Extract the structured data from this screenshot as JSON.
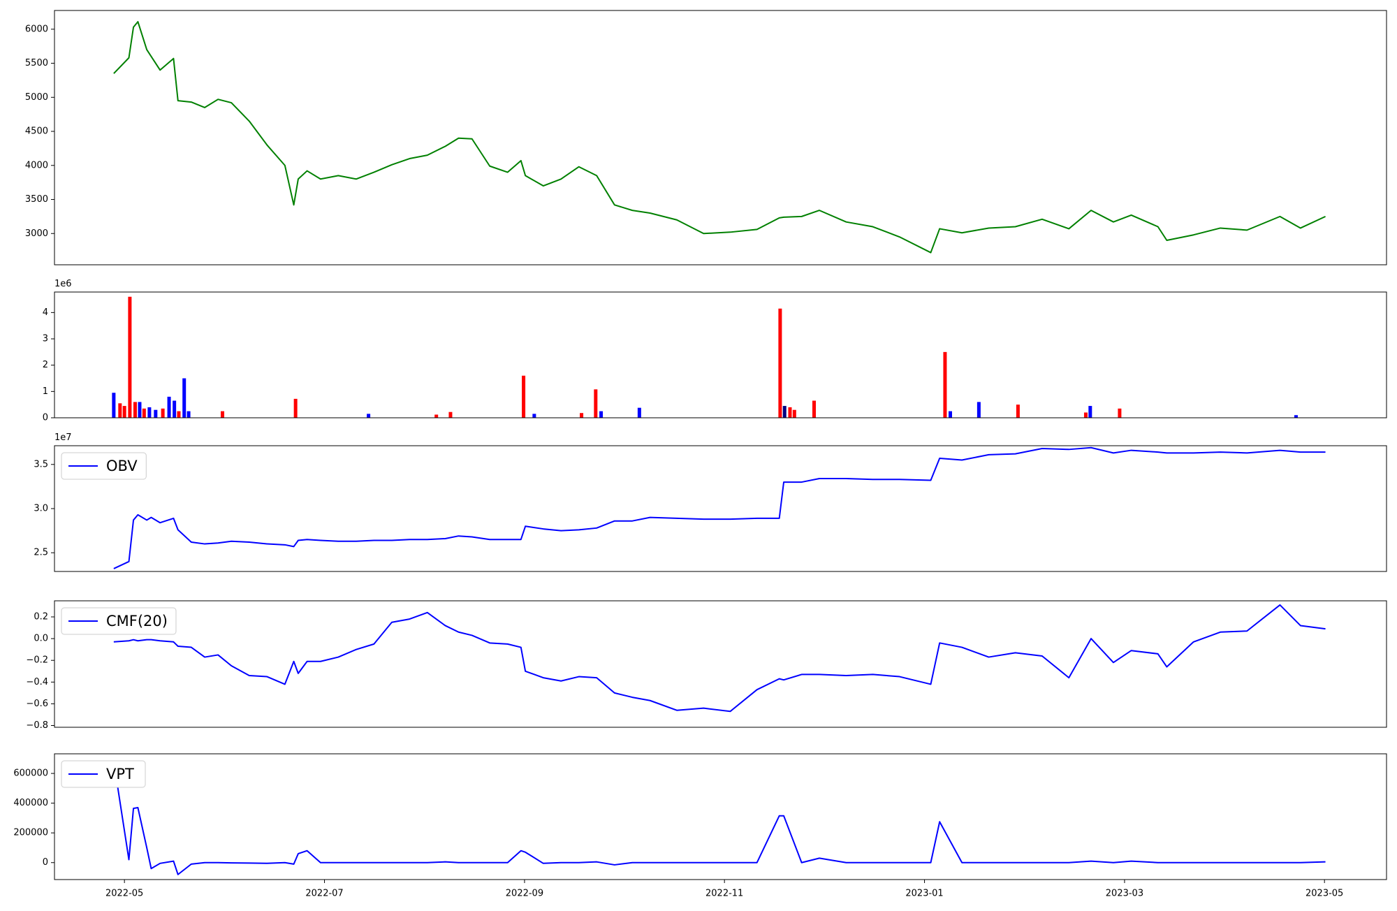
{
  "chart_data": [
    {
      "type": "line",
      "x": [
        2022.3244,
        2022.337,
        2022.3408,
        2022.3445,
        2022.3519,
        2022.3556,
        2022.363,
        2022.3742,
        2022.3779,
        2022.389,
        2022.4002,
        2022.4113,
        2022.4224,
        2022.4373,
        2022.4521,
        2022.467,
        2022.4744,
        2022.4781,
        2022.4855,
        2022.4967,
        2022.5115,
        2022.5264,
        2022.5412,
        2022.5561,
        2022.5709,
        2022.5857,
        2022.6006,
        2022.6117,
        2022.6229,
        2022.6377,
        2022.6526,
        2022.6637,
        2022.6674,
        2022.6823,
        2022.6971,
        2022.712,
        2022.7268,
        2022.7417,
        2022.7565,
        2022.7713,
        2022.7936,
        2022.8159,
        2022.8381,
        2022.8604,
        2022.879,
        2022.8827,
        2022.8976,
        2022.9124,
        2022.9347,
        2022.9569,
        2022.9792,
        2023.0052,
        2023.0126,
        2023.0312,
        2023.0535,
        2023.0757,
        2023.098,
        2023.1203,
        2023.1388,
        2023.1574,
        2023.1723,
        2023.1945,
        2023.2019,
        2023.2242,
        2023.2465,
        2023.2687,
        2023.2962,
        2023.3133,
        2023.3341
      ],
      "series": [
        {
          "color": "#008000",
          "values": [
            5350,
            5580,
            6030,
            6110,
            5700,
            5600,
            5400,
            5570,
            4950,
            4930,
            4850,
            4970,
            4920,
            4650,
            4300,
            4000,
            3420,
            3800,
            3920,
            3800,
            3850,
            3800,
            3900,
            4010,
            4100,
            4150,
            4280,
            4400,
            4390,
            3990,
            3900,
            4070,
            3850,
            3700,
            3800,
            3980,
            3850,
            3420,
            3340,
            3300,
            3200,
            3000,
            3020,
            3060,
            3230,
            3240,
            3250,
            3340,
            3170,
            3100,
            2950,
            2720,
            3070,
            3010,
            3080,
            3100,
            3210,
            3070,
            3340,
            3170,
            3270,
            3100,
            2900,
            2980,
            3080,
            3050,
            3250,
            3080,
            3250
          ]
        }
      ],
      "xlim": [
        2022.275,
        2023.385
      ],
      "ylim": [
        2541,
        6275
      ],
      "yticks": [
        3000,
        3500,
        4000,
        4500,
        5000,
        5500,
        6000
      ]
    },
    {
      "type": "bar",
      "x": [
        2022.3244,
        2022.3296,
        2022.3333,
        2022.3378,
        2022.3422,
        2022.346,
        2022.3497,
        2022.3541,
        2022.3593,
        2022.3653,
        2022.3705,
        2022.3749,
        2022.3786,
        2022.3831,
        2022.3868,
        2022.415,
        2022.4759,
        2022.5367,
        2022.5932,
        2022.605,
        2022.6659,
        2022.6748,
        2022.7142,
        2022.726,
        2022.7305,
        2022.7624,
        2022.8797,
        2022.8834,
        2022.8879,
        2022.8916,
        2022.908,
        2023.0171,
        2023.0215,
        2023.0453,
        2023.0779,
        2023.1344,
        2023.1381,
        2023.1626,
        2023.3096
      ],
      "values": [
        950000,
        550000,
        450000,
        4600000,
        600000,
        600000,
        350000,
        400000,
        300000,
        350000,
        800000,
        650000,
        250000,
        1500000,
        250000,
        250000,
        720000,
        150000,
        120000,
        220000,
        1600000,
        150000,
        180000,
        1080000,
        250000,
        380000,
        4150000,
        450000,
        400000,
        300000,
        650000,
        2500000,
        250000,
        600000,
        500000,
        200000,
        450000,
        350000,
        100000
      ],
      "colors": [
        "#0000ff",
        "#ff0000",
        "#ff0000",
        "#ff0000",
        "#ff0000",
        "#0000ff",
        "#ff0000",
        "#0000ff",
        "#0000ff",
        "#ff0000",
        "#0000ff",
        "#0000ff",
        "#ff0000",
        "#0000ff",
        "#0000ff",
        "#ff0000",
        "#ff0000",
        "#0000ff",
        "#ff0000",
        "#ff0000",
        "#ff0000",
        "#0000ff",
        "#ff0000",
        "#ff0000",
        "#0000ff",
        "#0000ff",
        "#ff0000",
        "#000080",
        "#ff0000",
        "#ff0000",
        "#ff0000",
        "#ff0000",
        "#0000ff",
        "#0000ff",
        "#ff0000",
        "#ff0000",
        "#0000ff",
        "#ff0000",
        "#0000ff"
      ],
      "xlim": [
        2022.275,
        2023.385
      ],
      "ylim": [
        0,
        4780000
      ],
      "yticks": [
        {
          "value": 0,
          "label": "0"
        },
        {
          "value": 1000000,
          "label": "1"
        },
        {
          "value": 2000000,
          "label": "2"
        },
        {
          "value": 3000000,
          "label": "3"
        },
        {
          "value": 4000000,
          "label": "4"
        }
      ],
      "y_offset_label": "1e6"
    },
    {
      "type": "line",
      "x": [
        2022.3244,
        2022.337,
        2022.3408,
        2022.3445,
        2022.3519,
        2022.3556,
        2022.363,
        2022.3742,
        2022.3779,
        2022.389,
        2022.4002,
        2022.4113,
        2022.4224,
        2022.4373,
        2022.4521,
        2022.467,
        2022.4744,
        2022.4781,
        2022.4855,
        2022.4967,
        2022.5115,
        2022.5264,
        2022.5412,
        2022.5561,
        2022.5709,
        2022.5857,
        2022.6006,
        2022.6117,
        2022.6229,
        2022.6377,
        2022.6526,
        2022.6637,
        2022.6674,
        2022.6823,
        2022.6971,
        2022.712,
        2022.7268,
        2022.7417,
        2022.7565,
        2022.7713,
        2022.7936,
        2022.8159,
        2022.8381,
        2022.8604,
        2022.879,
        2022.8827,
        2022.8976,
        2022.9124,
        2022.9347,
        2022.9569,
        2022.9792,
        2023.0052,
        2023.0126,
        2023.0312,
        2023.0535,
        2023.0757,
        2023.098,
        2023.1203,
        2023.1388,
        2023.1574,
        2023.1723,
        2023.1945,
        2023.2019,
        2023.2242,
        2023.2465,
        2023.2687,
        2023.2962,
        2023.3133,
        2023.3341
      ],
      "series": [
        {
          "name": "OBV",
          "color": "#0000ff",
          "values": [
            23200000,
            24000000,
            28700000,
            29300000,
            28700000,
            29000000,
            28400000,
            28900000,
            27600000,
            26200000,
            26000000,
            26100000,
            26300000,
            26200000,
            26000000,
            25900000,
            25700000,
            26400000,
            26500000,
            26400000,
            26300000,
            26300000,
            26400000,
            26400000,
            26500000,
            26500000,
            26600000,
            26900000,
            26800000,
            26500000,
            26500000,
            26500000,
            28000000,
            27700000,
            27500000,
            27600000,
            27800000,
            28600000,
            28600000,
            29000000,
            28900000,
            28800000,
            28800000,
            28900000,
            28900000,
            33000000,
            33000000,
            33400000,
            33400000,
            33300000,
            33300000,
            33200000,
            35700000,
            35500000,
            36100000,
            36200000,
            36800000,
            36700000,
            36900000,
            36300000,
            36600000,
            36400000,
            36300000,
            36300000,
            36400000,
            36300000,
            36600000,
            36400000,
            36400000
          ]
        }
      ],
      "xlim": [
        2022.275,
        2023.385
      ],
      "ylim": [
        22880000,
        37120000
      ],
      "yticks": [
        {
          "value": 25000000,
          "label": "2.5"
        },
        {
          "value": 30000000,
          "label": "3.0"
        },
        {
          "value": 35000000,
          "label": "3.5"
        }
      ],
      "y_offset_label": "1e7",
      "legend": "upper left"
    },
    {
      "type": "line",
      "x": [
        2022.3244,
        2022.337,
        2022.3408,
        2022.3445,
        2022.3519,
        2022.3556,
        2022.363,
        2022.3742,
        2022.3779,
        2022.389,
        2022.4002,
        2022.4113,
        2022.4224,
        2022.4373,
        2022.4521,
        2022.467,
        2022.4744,
        2022.4781,
        2022.4855,
        2022.4967,
        2022.5115,
        2022.5264,
        2022.5412,
        2022.5561,
        2022.5709,
        2022.5857,
        2022.6006,
        2022.6117,
        2022.6229,
        2022.6377,
        2022.6526,
        2022.6637,
        2022.6674,
        2022.6823,
        2022.6971,
        2022.712,
        2022.7268,
        2022.7417,
        2022.7565,
        2022.7713,
        2022.7936,
        2022.8159,
        2022.8381,
        2022.8604,
        2022.879,
        2022.8827,
        2022.8976,
        2022.9124,
        2022.9347,
        2022.9569,
        2022.9792,
        2023.0052,
        2023.0126,
        2023.0312,
        2023.0535,
        2023.0757,
        2023.098,
        2023.1203,
        2023.1388,
        2023.1574,
        2023.1723,
        2023.1945,
        2023.2019,
        2023.2242,
        2023.2465,
        2023.2687,
        2023.2962,
        2023.3133,
        2023.3341
      ],
      "series": [
        {
          "name": "CMF(20)",
          "color": "#0000ff",
          "values": [
            -0.03,
            -0.02,
            -0.01,
            -0.02,
            -0.01,
            -0.01,
            -0.02,
            -0.03,
            -0.07,
            -0.08,
            -0.17,
            -0.15,
            -0.25,
            -0.34,
            -0.35,
            -0.42,
            -0.21,
            -0.32,
            -0.21,
            -0.21,
            -0.17,
            -0.1,
            -0.05,
            0.15,
            0.18,
            0.24,
            0.12,
            0.06,
            0.03,
            -0.04,
            -0.05,
            -0.08,
            -0.3,
            -0.36,
            -0.39,
            -0.35,
            -0.36,
            -0.5,
            -0.54,
            -0.57,
            -0.66,
            -0.64,
            -0.67,
            -0.47,
            -0.37,
            -0.38,
            -0.33,
            -0.33,
            -0.34,
            -0.33,
            -0.35,
            -0.42,
            -0.04,
            -0.08,
            -0.17,
            -0.13,
            -0.16,
            -0.36,
            0.0,
            -0.22,
            -0.11,
            -0.14,
            -0.26,
            -0.03,
            0.06,
            0.07,
            0.31,
            0.12,
            0.09
          ]
        }
      ],
      "xlim": [
        2022.275,
        2023.385
      ],
      "ylim": [
        -0.816,
        0.348
      ],
      "yticks": [
        {
          "value": -0.8,
          "label": "−0.8"
        },
        {
          "value": -0.6,
          "label": "−0.6"
        },
        {
          "value": -0.4,
          "label": "−0.4"
        },
        {
          "value": -0.2,
          "label": "−0.2"
        },
        {
          "value": 0,
          "label": "0.0"
        },
        0.2
      ],
      "legend": "upper left"
    },
    {
      "type": "line",
      "x": [
        2022.3244,
        2022.337,
        2022.3408,
        2022.3445,
        2022.3519,
        2022.3556,
        2022.363,
        2022.3742,
        2022.3779,
        2022.389,
        2022.4002,
        2022.4113,
        2022.4224,
        2022.4373,
        2022.4521,
        2022.467,
        2022.4744,
        2022.4781,
        2022.4855,
        2022.4967,
        2022.5115,
        2022.5264,
        2022.5412,
        2022.5561,
        2022.5709,
        2022.5857,
        2022.6006,
        2022.6117,
        2022.6229,
        2022.6377,
        2022.6526,
        2022.6637,
        2022.6674,
        2022.6823,
        2022.6971,
        2022.712,
        2022.7268,
        2022.7417,
        2022.7565,
        2022.7713,
        2022.7936,
        2022.8159,
        2022.8381,
        2022.8604,
        2022.879,
        2022.8827,
        2022.8976,
        2022.9124,
        2022.9347,
        2022.9569,
        2022.9792,
        2023.0052,
        2023.0126,
        2023.0312,
        2023.0535,
        2023.0757,
        2023.098,
        2023.1203,
        2023.1388,
        2023.1574,
        2023.1723,
        2023.1945,
        2023.2019,
        2023.2242,
        2023.2465,
        2023.2687,
        2023.2962,
        2023.3133,
        2023.3341
      ],
      "series": [
        {
          "name": "VPT",
          "color": "#0000ff",
          "values": [
            680000,
            20000,
            365000,
            370000,
            100000,
            -40000,
            -5000,
            10000,
            -80000,
            -10000,
            0,
            0,
            -2000,
            -3000,
            -5000,
            0,
            -10000,
            60000,
            80000,
            0,
            0,
            0,
            0,
            0,
            0,
            0,
            5000,
            0,
            0,
            0,
            0,
            80000,
            70000,
            -5000,
            0,
            0,
            5000,
            -15000,
            0,
            0,
            0,
            0,
            0,
            0,
            315000,
            315000,
            0,
            30000,
            0,
            0,
            0,
            0,
            275000,
            0,
            0,
            0,
            0,
            0,
            10000,
            0,
            10000,
            0,
            0,
            0,
            0,
            0,
            0,
            0,
            5000
          ]
        }
      ],
      "xlim": [
        2022.275,
        2023.385
      ],
      "xticks": [
        {
          "value": 2022.3333,
          "label": "2022-05"
        },
        {
          "value": 2022.5,
          "label": "2022-07"
        },
        {
          "value": 2022.6667,
          "label": "2022-09"
        },
        {
          "value": 2022.8333,
          "label": "2022-11"
        },
        {
          "value": 2023.0,
          "label": "2023-01"
        },
        {
          "value": 2023.1667,
          "label": "2023-03"
        },
        {
          "value": 2023.3333,
          "label": "2023-05"
        }
      ],
      "ylim": [
        -114000,
        732000
      ],
      "yticks": [
        0,
        200000,
        400000,
        600000
      ],
      "legend": "upper left"
    }
  ]
}
